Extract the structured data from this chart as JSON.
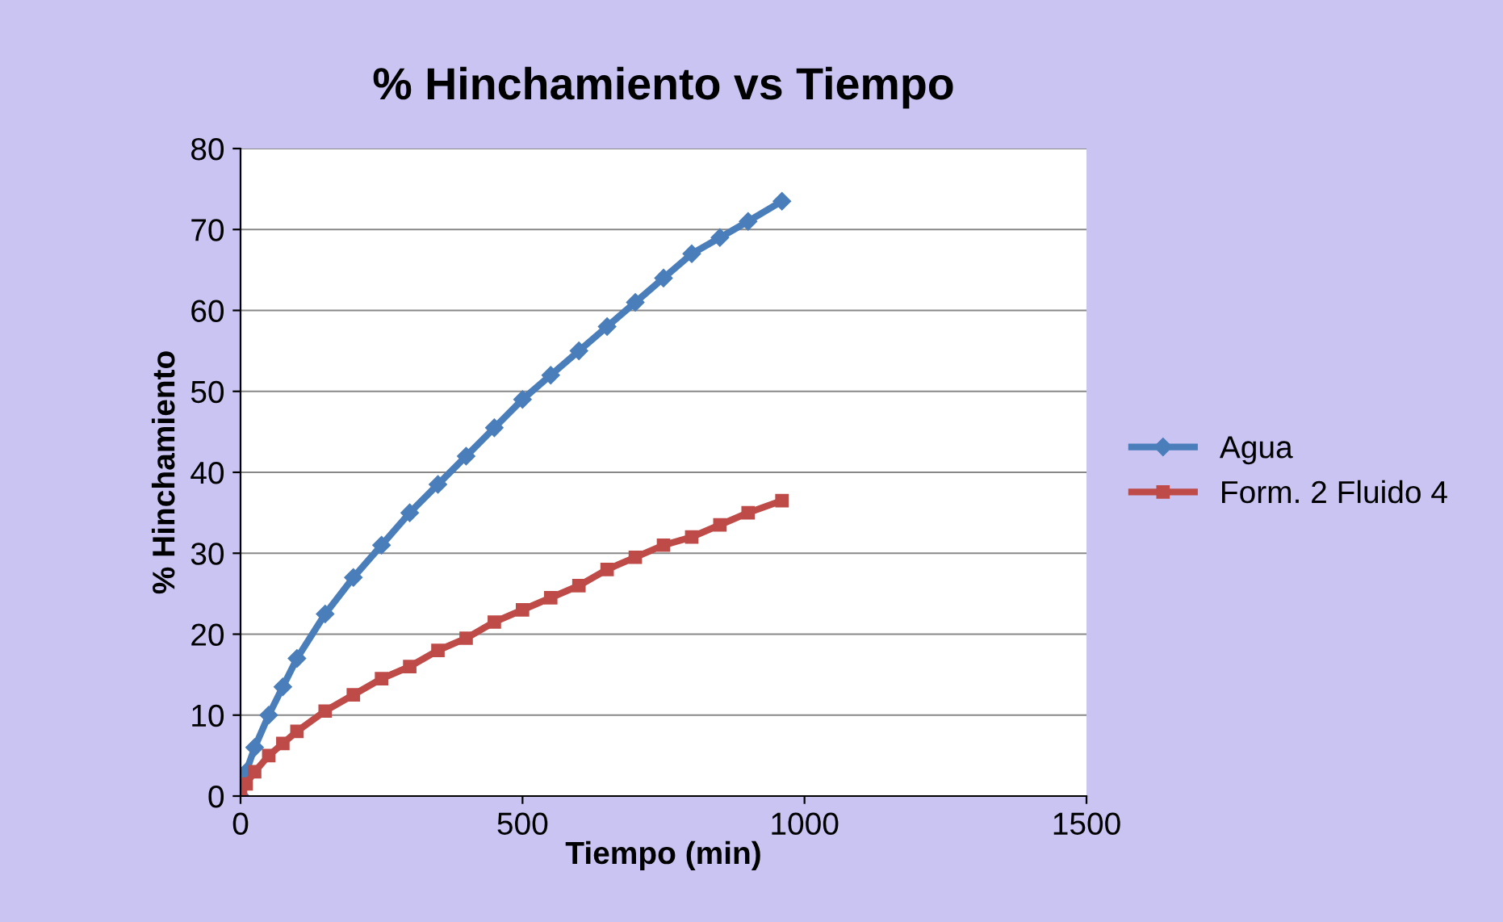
{
  "chart_data": {
    "type": "line",
    "title": "% Hinchamiento vs Tiempo",
    "xlabel": "Tiempo (min)",
    "ylabel": "% Hinchamiento",
    "xlim": [
      0,
      1500
    ],
    "xticks": [
      0,
      500,
      1000,
      1500
    ],
    "ylim": [
      0,
      80
    ],
    "yticks": [
      0,
      10,
      20,
      30,
      40,
      50,
      60,
      70,
      80
    ],
    "grid": "y",
    "legend": "right",
    "series": [
      {
        "name": "Agua",
        "color": "#4a7ebb",
        "marker": "diamond",
        "x": [
          0,
          10,
          25,
          50,
          75,
          100,
          150,
          200,
          250,
          300,
          350,
          400,
          450,
          500,
          550,
          600,
          650,
          700,
          750,
          800,
          850,
          900,
          960
        ],
        "values": [
          0,
          3,
          6,
          10,
          13.5,
          17,
          22.5,
          27,
          31,
          35,
          38.5,
          42,
          45.5,
          49,
          52,
          55,
          58,
          61,
          64,
          67,
          69,
          71,
          73.5
        ]
      },
      {
        "name": "Form. 2 Fluido 4",
        "color": "#be4b48",
        "marker": "square",
        "x": [
          0,
          10,
          25,
          50,
          75,
          100,
          150,
          200,
          250,
          300,
          350,
          400,
          450,
          500,
          550,
          600,
          650,
          700,
          750,
          800,
          850,
          900,
          960
        ],
        "values": [
          0,
          1.5,
          3,
          5,
          6.5,
          8,
          10.5,
          12.5,
          14.5,
          16,
          18,
          19.5,
          21.5,
          23,
          24.5,
          26,
          28,
          29.5,
          31,
          32,
          33.5,
          35,
          36.5
        ]
      }
    ]
  }
}
